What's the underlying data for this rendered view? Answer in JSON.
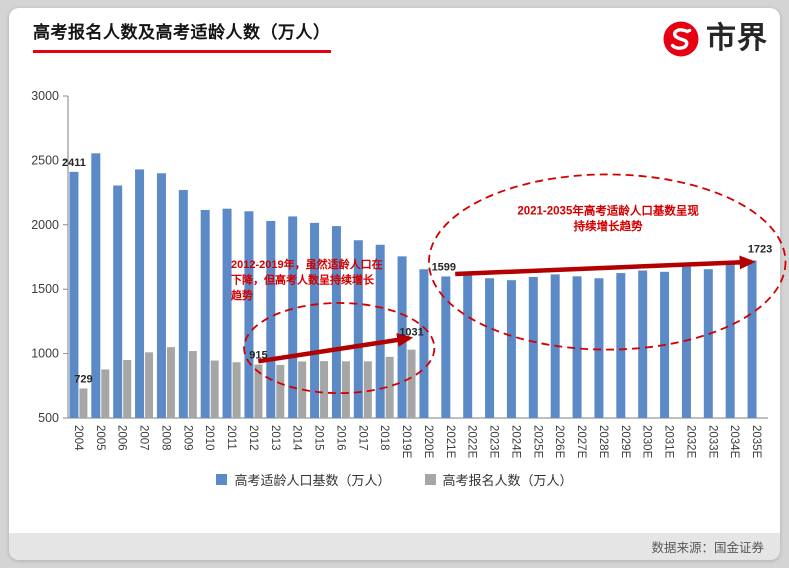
{
  "header": {
    "title": "高考报名人数及高考适龄人数（万人）",
    "brand": "市界"
  },
  "footer": {
    "source": "数据来源：国金证券"
  },
  "colors": {
    "accent_red": "#e60012",
    "annotation_red": "#d40000",
    "arrow_red": "#b30000",
    "bar_blue": "#5b8ac6",
    "bar_gray": "#a6a6a6"
  },
  "chart_data": {
    "type": "bar",
    "title": "高考报名人数及高考适龄人数（万人）",
    "xlabel": "",
    "ylabel": "",
    "ylim": [
      500,
      3000
    ],
    "yticks": [
      500,
      1000,
      1500,
      2000,
      2500,
      3000
    ],
    "grid": false,
    "legend_position": "bottom",
    "categories": [
      "2004",
      "2005",
      "2006",
      "2007",
      "2008",
      "2009",
      "2010",
      "2011",
      "2012",
      "2013",
      "2014",
      "2015",
      "2016",
      "2017",
      "2018",
      "2019E",
      "2020E",
      "2021E",
      "2022E",
      "2023E",
      "2024E",
      "2025E",
      "2026E",
      "2027E",
      "2028E",
      "2029E",
      "2030E",
      "2031E",
      "2032E",
      "2033E",
      "2034E",
      "2035E"
    ],
    "series": [
      {
        "name": "高考适龄人口基数（万人）",
        "color": "#5b8ac6",
        "values": [
          2411,
          2555,
          2305,
          2430,
          2400,
          2270,
          2115,
          2125,
          2105,
          2030,
          2065,
          2015,
          1990,
          1880,
          1845,
          1755,
          1655,
          1599,
          1610,
          1585,
          1570,
          1595,
          1615,
          1600,
          1585,
          1625,
          1645,
          1635,
          1675,
          1655,
          1718,
          1723
        ]
      },
      {
        "name": "高考报名人数（万人）",
        "color": "#a6a6a6",
        "values": [
          729,
          877,
          950,
          1010,
          1050,
          1020,
          946,
          933,
          915,
          912,
          939,
          942,
          940,
          940,
          975,
          1031,
          null,
          null,
          null,
          null,
          null,
          null,
          null,
          null,
          null,
          null,
          null,
          null,
          null,
          null,
          null,
          null
        ]
      }
    ],
    "bar_labels": [
      {
        "category": "2004",
        "series": 0,
        "value": 2411,
        "label": "2411"
      },
      {
        "category": "2004",
        "series": 1,
        "value": 729,
        "label": "729"
      },
      {
        "category": "2012",
        "series": 1,
        "value": 915,
        "label": "915"
      },
      {
        "category": "2019E",
        "series": 1,
        "value": 1031,
        "label": "1031",
        "dy": -8
      },
      {
        "category": "2021E",
        "series": 0,
        "value": 1599,
        "label": "1599",
        "dx": -2
      },
      {
        "category": "2035E",
        "series": 0,
        "value": 1723,
        "label": "1723",
        "dx": 8,
        "dy": -2
      }
    ],
    "annotations": [
      {
        "type": "ellipse",
        "center_category": "2016",
        "center_offset": -0.1,
        "center_value": 1043,
        "rx_categories": 4.35,
        "ry_value": 350
      },
      {
        "type": "ellipse",
        "center_category": "2028E",
        "center_offset": 0.15,
        "center_value": 1711,
        "rx_categories": 8.15,
        "ry_value": 680
      },
      {
        "type": "arrow",
        "from_category": "2012",
        "from_offset": 0.2,
        "from_value": 940,
        "to_category": "2019E",
        "to_offset": 0.1,
        "to_value": 1120
      },
      {
        "type": "arrow",
        "from_category": "2021E",
        "from_offset": 0.2,
        "from_value": 1618,
        "to_category": "2035E",
        "to_offset": -0.25,
        "to_value": 1712
      },
      {
        "type": "note",
        "lines": [
          "2012-2019年，虽然适龄人口在",
          "下降，但高考人数呈持续增长",
          "趋势"
        ],
        "anchor_category": "2011",
        "anchor_offset": -0.05,
        "anchor_value": 1664,
        "align": "start",
        "font_size": 11
      },
      {
        "type": "note",
        "lines": [
          "2021-2035年高考适龄人口基数呈现",
          "持续增长趋势"
        ],
        "anchor_category": "2028E",
        "anchor_offset": 0.19,
        "anchor_value": 2080,
        "align": "middle",
        "font_size": 11.5
      }
    ]
  },
  "legend": {
    "items": [
      {
        "label": "高考适龄人口基数（万人）"
      },
      {
        "label": "高考报名人数（万人）"
      }
    ]
  }
}
